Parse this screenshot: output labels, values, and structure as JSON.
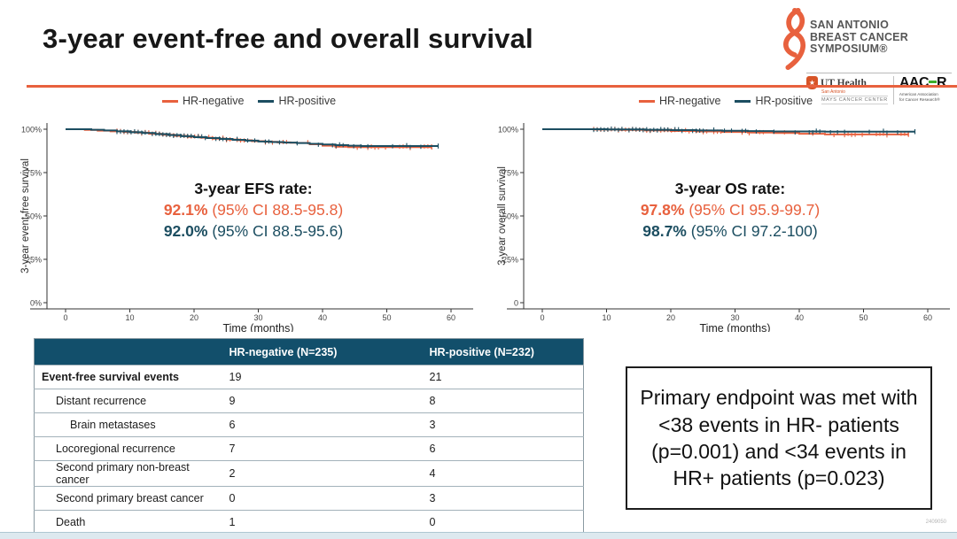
{
  "title": "3-year event-free and overall survival",
  "colors": {
    "orange": "#E8613E",
    "navy": "#1C4E61",
    "table_header_bg": "#124F6B",
    "aacr_green": "#3DAE2B"
  },
  "logo": {
    "name_lines": [
      "SAN ANTONIO",
      "BREAST CANCER",
      "SYMPOSIUM®"
    ],
    "ut_health": {
      "name": "UT Health",
      "sub1": "San Antonio",
      "sub2": "MAYS CANCER CENTER",
      "star": "★"
    },
    "aacr": {
      "left": "AAC",
      "right": "R",
      "sub1": "American Association",
      "sub2": "for Cancer Research®"
    }
  },
  "chart_data": [
    {
      "type": "line",
      "subtype": "kaplan-meier-step",
      "ylabel": "3-year event-free survival",
      "xlabel": "Time (months)",
      "xticks": [
        0,
        10,
        20,
        30,
        40,
        50,
        60
      ],
      "ytick_labels": [
        "100%",
        "75%",
        "50%",
        "25%",
        "0%"
      ],
      "ylim": [
        0,
        100
      ],
      "xlim": [
        0,
        62
      ],
      "grid": false,
      "legend_position": "top-center",
      "legend": [
        {
          "label": "HR-negative",
          "color": "#E8613E"
        },
        {
          "label": "HR-positive",
          "color": "#1C4E61"
        }
      ],
      "annotation": {
        "title": "3-year EFS rate:",
        "results": [
          {
            "value": "92.1%",
            "ci": " (95% CI 88.5-95.8)",
            "color": "#E8613E"
          },
          {
            "value": "92.0%",
            "ci": " (95% CI 88.5-95.6)",
            "color": "#1C4E61"
          }
        ]
      },
      "series": [
        {
          "name": "HR-negative",
          "color": "#E8613E",
          "points": [
            [
              0,
              100
            ],
            [
              3,
              99.6
            ],
            [
              5,
              99.2
            ],
            [
              7,
              98.8
            ],
            [
              9,
              98.4
            ],
            [
              11,
              98.0
            ],
            [
              13,
              97.4
            ],
            [
              15,
              96.8
            ],
            [
              17,
              96.2
            ],
            [
              19,
              95.6
            ],
            [
              21,
              95.1
            ],
            [
              23,
              94.6
            ],
            [
              25,
              94.1
            ],
            [
              27,
              93.6
            ],
            [
              29,
              93.1
            ],
            [
              31,
              92.7
            ],
            [
              33,
              92.4
            ],
            [
              35,
              92.2
            ],
            [
              36,
              92.1
            ],
            [
              38,
              91.3
            ],
            [
              40,
              90.5
            ],
            [
              42,
              89.9
            ],
            [
              44,
              89.7
            ],
            [
              57,
              89.7
            ]
          ]
        },
        {
          "name": "HR-positive",
          "color": "#1C4E61",
          "points": [
            [
              0,
              100
            ],
            [
              4,
              99.7
            ],
            [
              6,
              99.3
            ],
            [
              8,
              98.8
            ],
            [
              10,
              98.3
            ],
            [
              12,
              97.8
            ],
            [
              14,
              97.2
            ],
            [
              16,
              96.6
            ],
            [
              18,
              96.0
            ],
            [
              20,
              95.4
            ],
            [
              22,
              94.9
            ],
            [
              24,
              94.4
            ],
            [
              26,
              93.9
            ],
            [
              28,
              93.4
            ],
            [
              30,
              92.9
            ],
            [
              32,
              92.6
            ],
            [
              34,
              92.3
            ],
            [
              36,
              92.0
            ],
            [
              38,
              91.6
            ],
            [
              40,
              91.2
            ],
            [
              42,
              90.8
            ],
            [
              44,
              90.5
            ],
            [
              46,
              90.3
            ],
            [
              58,
              90.3
            ]
          ]
        }
      ]
    },
    {
      "type": "line",
      "subtype": "kaplan-meier-step",
      "ylabel": "3-year overall survival",
      "xlabel": "Time (months)",
      "xticks": [
        0,
        10,
        20,
        30,
        40,
        50,
        60
      ],
      "ytick_labels": [
        "100%",
        "75%",
        "50%",
        "25%",
        "0"
      ],
      "ylim": [
        0,
        100
      ],
      "xlim": [
        0,
        62
      ],
      "grid": false,
      "legend_position": "top-center",
      "legend": [
        {
          "label": "HR-negative",
          "color": "#E8613E"
        },
        {
          "label": "HR-positive",
          "color": "#1C4E61"
        }
      ],
      "annotation": {
        "title": "3-year OS rate:",
        "results": [
          {
            "value": "97.8%",
            "ci": " (95% CI 95.9-99.7)",
            "color": "#E8613E"
          },
          {
            "value": "98.7%",
            "ci": " (95% CI 97.2-100)",
            "color": "#1C4E61"
          }
        ]
      },
      "series": [
        {
          "name": "HR-negative",
          "color": "#E8613E",
          "points": [
            [
              0,
              100
            ],
            [
              8,
              99.8
            ],
            [
              12,
              99.6
            ],
            [
              16,
              99.3
            ],
            [
              20,
              99.0
            ],
            [
              24,
              98.7
            ],
            [
              28,
              98.4
            ],
            [
              32,
              98.1
            ],
            [
              36,
              97.8
            ],
            [
              40,
              97.4
            ],
            [
              44,
              97.0
            ],
            [
              57,
              97.0
            ]
          ]
        },
        {
          "name": "HR-positive",
          "color": "#1C4E61",
          "points": [
            [
              0,
              100
            ],
            [
              10,
              99.9
            ],
            [
              16,
              99.7
            ],
            [
              20,
              99.5
            ],
            [
              24,
              99.3
            ],
            [
              28,
              99.1
            ],
            [
              32,
              98.9
            ],
            [
              36,
              98.7
            ],
            [
              44,
              98.6
            ],
            [
              58,
              98.6
            ]
          ]
        }
      ]
    }
  ],
  "table": {
    "headers": [
      "",
      "HR-negative (N=235)",
      "HR-positive (N=232)"
    ],
    "rows": [
      {
        "label": "Event-free survival events",
        "indent": 0,
        "bold": true,
        "values": [
          "19",
          "21"
        ]
      },
      {
        "label": "Distant recurrence",
        "indent": 1,
        "bold": false,
        "values": [
          "9",
          "8"
        ]
      },
      {
        "label": "Brain metastases",
        "indent": 2,
        "bold": false,
        "values": [
          "6",
          "3"
        ]
      },
      {
        "label": "Locoregional recurrence",
        "indent": 1,
        "bold": false,
        "values": [
          "7",
          "6"
        ]
      },
      {
        "label": "Second primary non-breast cancer",
        "indent": 1,
        "bold": false,
        "values": [
          "2",
          "4"
        ]
      },
      {
        "label": "Second primary breast cancer",
        "indent": 1,
        "bold": false,
        "values": [
          "0",
          "3"
        ]
      },
      {
        "label": "Death",
        "indent": 1,
        "bold": false,
        "values": [
          "1",
          "0"
        ]
      }
    ]
  },
  "callout": {
    "text": "Primary endpoint was met with <38 events in HR- patients (p=0.001) and <34 events in HR+ patients (p=0.023)"
  },
  "footer": {
    "slide_id": "2409050"
  }
}
